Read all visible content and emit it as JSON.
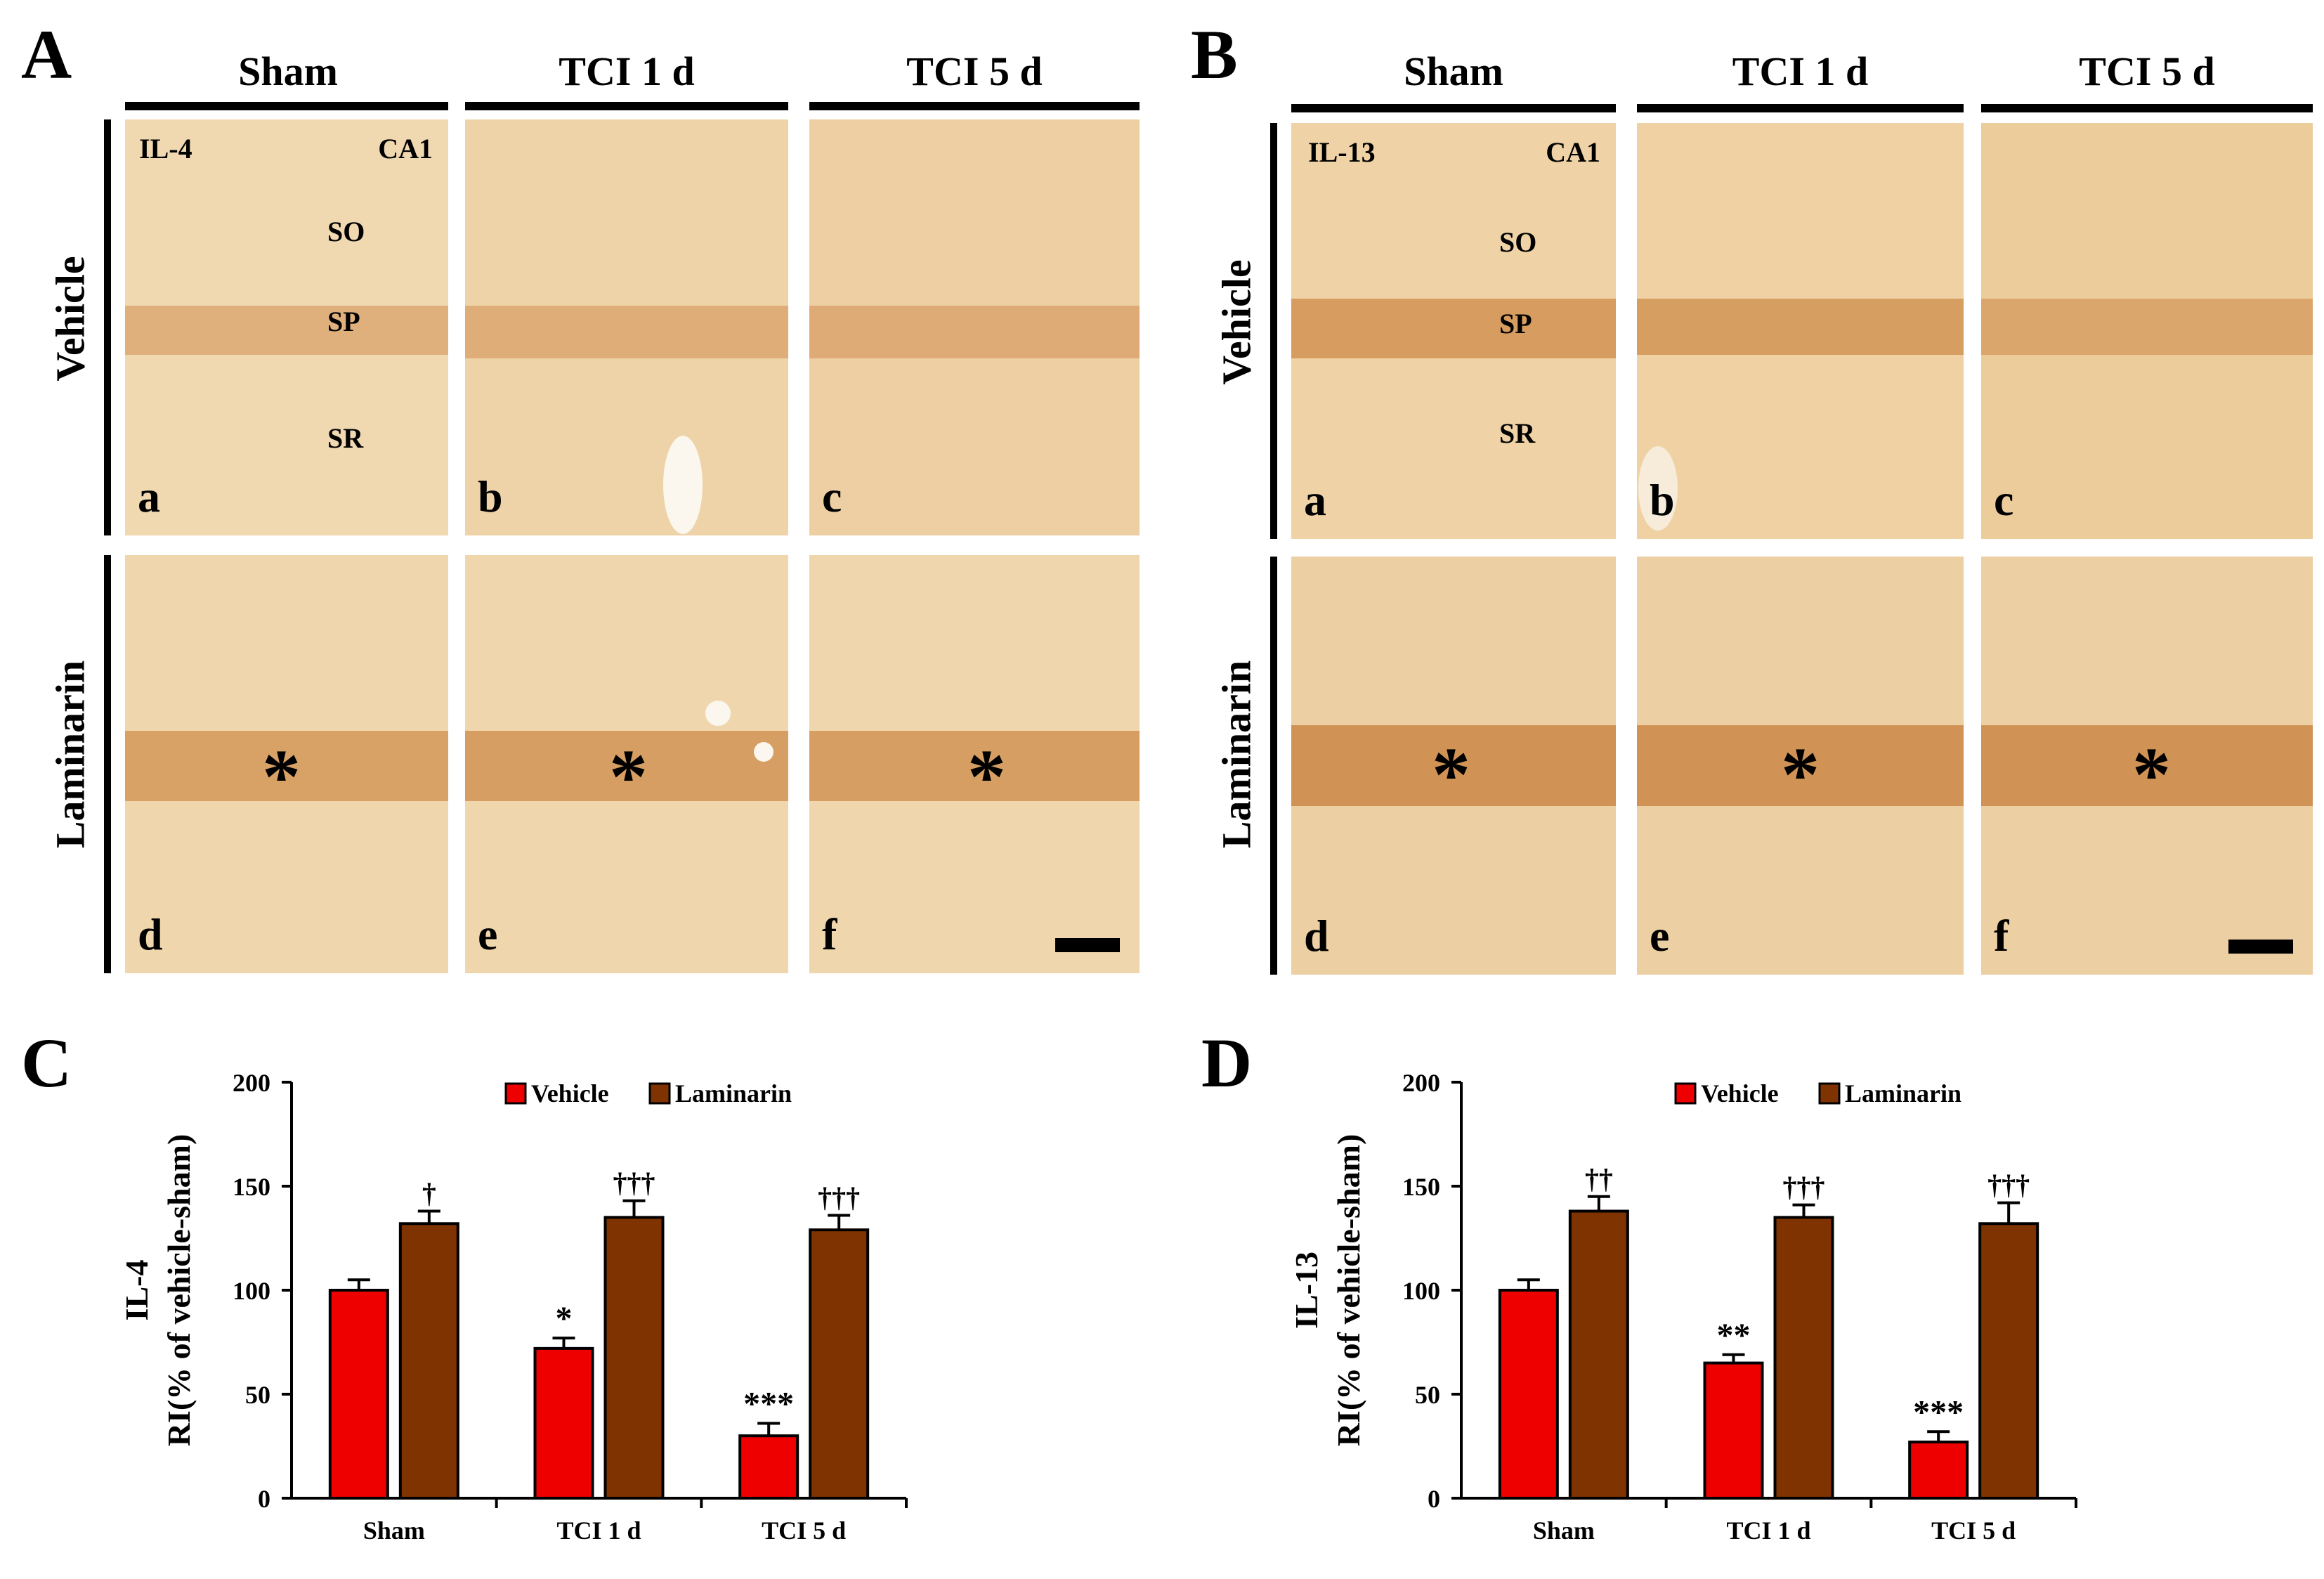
{
  "micrographs": [
    {
      "panel_label": "A",
      "marker": "IL-4",
      "region": "CA1",
      "columns": [
        "Sham",
        "TCI 1 d",
        "TCI 5 d"
      ],
      "rows": [
        "Vehicle",
        "Laminarin"
      ],
      "layers": [
        "SO",
        "SP",
        "SR"
      ],
      "tile_letters": [
        "a",
        "b",
        "c",
        "d",
        "e",
        "f"
      ],
      "asterisk": "*"
    },
    {
      "panel_label": "B",
      "marker": "IL-13",
      "region": "CA1",
      "columns": [
        "Sham",
        "TCI 1 d",
        "TCI 5 d"
      ],
      "rows": [
        "Vehicle",
        "Laminarin"
      ],
      "layers": [
        "SO",
        "SP",
        "SR"
      ],
      "tile_letters": [
        "a",
        "b",
        "c",
        "d",
        "e",
        "f"
      ],
      "asterisk": "*"
    }
  ],
  "colors": {
    "vehicle": "#ee0000",
    "laminarin": "#7f3300",
    "tissue_bg": "#f0d8b0",
    "tissue_band": "#d9a36a"
  },
  "chart_data": [
    {
      "panel_label": "C",
      "type": "bar",
      "title": "",
      "ylabel_top": "IL-4",
      "ylabel": "RI(% of vehicle-sham)",
      "xlabel": "",
      "categories": [
        "Sham",
        "TCI 1 d",
        "TCI 5 d"
      ],
      "ylim": [
        0,
        200
      ],
      "yticks": [
        "0",
        "50",
        "100",
        "150",
        "200"
      ],
      "legend_position": "top-right",
      "series": [
        {
          "name": "Vehicle",
          "values": [
            100,
            72,
            30
          ],
          "errors": [
            5,
            5,
            6
          ],
          "marks": [
            "",
            "*",
            "***"
          ]
        },
        {
          "name": "Laminarin",
          "values": [
            132,
            135,
            129
          ],
          "errors": [
            6,
            8,
            7
          ],
          "marks": [
            "†",
            "†††",
            "†††"
          ]
        }
      ]
    },
    {
      "panel_label": "D",
      "type": "bar",
      "title": "",
      "ylabel_top": "IL-13",
      "ylabel": "RI(% of vehicle-sham)",
      "xlabel": "",
      "categories": [
        "Sham",
        "TCI 1 d",
        "TCI 5 d"
      ],
      "ylim": [
        0,
        200
      ],
      "yticks": [
        "0",
        "50",
        "100",
        "150",
        "200"
      ],
      "legend_position": "top-right",
      "series": [
        {
          "name": "Vehicle",
          "values": [
            100,
            65,
            27
          ],
          "errors": [
            5,
            4,
            5
          ],
          "marks": [
            "",
            "**",
            "***"
          ]
        },
        {
          "name": "Laminarin",
          "values": [
            138,
            135,
            132
          ],
          "errors": [
            7,
            6,
            10
          ],
          "marks": [
            "††",
            "†††",
            "†††"
          ]
        }
      ]
    }
  ]
}
